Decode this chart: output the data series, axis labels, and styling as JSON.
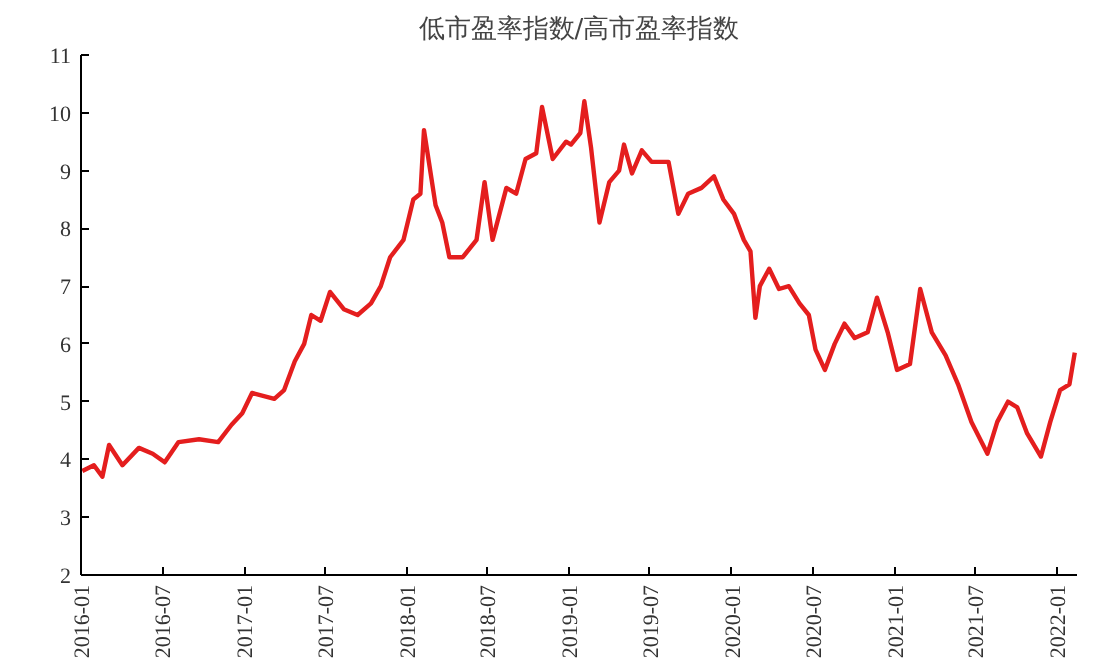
{
  "chart_data": {
    "type": "line",
    "title": "低市盈率指数/高市盈率指数",
    "x": [
      "2016-01-04",
      "2016-01-30",
      "2016-02-18",
      "2016-03-04",
      "2016-04-03",
      "2016-05-10",
      "2016-06-10",
      "2016-07-07",
      "2016-08-07",
      "2016-09-22",
      "2016-11-04",
      "2016-12-04",
      "2016-12-28",
      "2017-01-19",
      "2017-03-10",
      "2017-04-01",
      "2017-04-25",
      "2017-05-16",
      "2017-06-01",
      "2017-06-22",
      "2017-07-13",
      "2017-08-13",
      "2017-09-13",
      "2017-10-13",
      "2017-11-04",
      "2017-11-25",
      "2017-12-25",
      "2018-01-16",
      "2018-02-01",
      "2018-02-09",
      "2018-02-25",
      "2018-03-07",
      "2018-03-22",
      "2018-04-07",
      "2018-05-07",
      "2018-06-07",
      "2018-06-25",
      "2018-07-13",
      "2018-08-13",
      "2018-09-04",
      "2018-09-25",
      "2018-10-19",
      "2018-11-01",
      "2018-11-25",
      "2018-12-25",
      "2019-01-05",
      "2019-01-26",
      "2019-02-04",
      "2019-02-19",
      "2019-03-10",
      "2019-04-01",
      "2019-04-23",
      "2019-05-04",
      "2019-05-22",
      "2019-06-13",
      "2019-07-05",
      "2019-08-12",
      "2019-09-03",
      "2019-09-25",
      "2019-10-25",
      "2019-11-22",
      "2019-12-13",
      "2020-01-06",
      "2020-01-28",
      "2020-02-12",
      "2020-02-23",
      "2020-03-04",
      "2020-03-25",
      "2020-04-16",
      "2020-05-08",
      "2020-06-01",
      "2020-06-22",
      "2020-07-07",
      "2020-07-28",
      "2020-08-19",
      "2020-09-10",
      "2020-10-03",
      "2020-11-01",
      "2020-11-22",
      "2020-12-16",
      "2021-01-06",
      "2021-02-04",
      "2021-02-27",
      "2021-03-25",
      "2021-04-25",
      "2021-05-23",
      "2021-06-22",
      "2021-07-28",
      "2021-08-19",
      "2021-09-12",
      "2021-10-03",
      "2021-10-25",
      "2021-11-25",
      "2021-12-16",
      "2022-01-07",
      "2022-01-28",
      "2022-02-09"
    ],
    "series": [
      {
        "color": "#e41e1e",
        "values": [
          3.8,
          3.9,
          3.7,
          4.25,
          3.9,
          4.2,
          4.1,
          3.95,
          4.3,
          4.35,
          4.3,
          4.6,
          4.8,
          5.15,
          5.05,
          5.2,
          5.7,
          6.0,
          6.5,
          6.4,
          6.9,
          6.6,
          6.5,
          6.7,
          7.0,
          7.5,
          7.8,
          8.5,
          8.6,
          9.7,
          8.9,
          8.4,
          8.1,
          7.5,
          7.5,
          7.8,
          8.8,
          7.8,
          8.7,
          8.6,
          9.2,
          9.3,
          10.1,
          9.2,
          9.5,
          9.45,
          9.65,
          10.2,
          9.4,
          8.1,
          8.8,
          9.0,
          9.45,
          8.95,
          9.35,
          9.15,
          9.15,
          8.25,
          8.6,
          8.7,
          8.9,
          8.5,
          8.25,
          7.8,
          7.6,
          6.45,
          7.0,
          7.3,
          6.95,
          7.0,
          6.7,
          6.5,
          5.9,
          5.55,
          6.0,
          6.35,
          6.1,
          6.2,
          6.8,
          6.2,
          5.55,
          5.65,
          6.95,
          6.2,
          5.8,
          5.3,
          4.65,
          4.1,
          4.65,
          5.0,
          4.9,
          4.45,
          4.05,
          4.65,
          5.2,
          5.3,
          5.85
        ]
      }
    ],
    "xlim": [
      "2016-01-01",
      "2022-02-14"
    ],
    "xticks": [
      "2016-01",
      "2016-07",
      "2017-01",
      "2017-07",
      "2018-01",
      "2018-07",
      "2019-01",
      "2019-07",
      "2020-01",
      "2020-07",
      "2021-01",
      "2021-07",
      "2022-01"
    ],
    "ylim": [
      2,
      11
    ],
    "yticks": [
      2,
      3,
      4,
      5,
      6,
      7,
      8,
      9,
      10,
      11
    ],
    "grid": false,
    "line_style": "solid"
  }
}
